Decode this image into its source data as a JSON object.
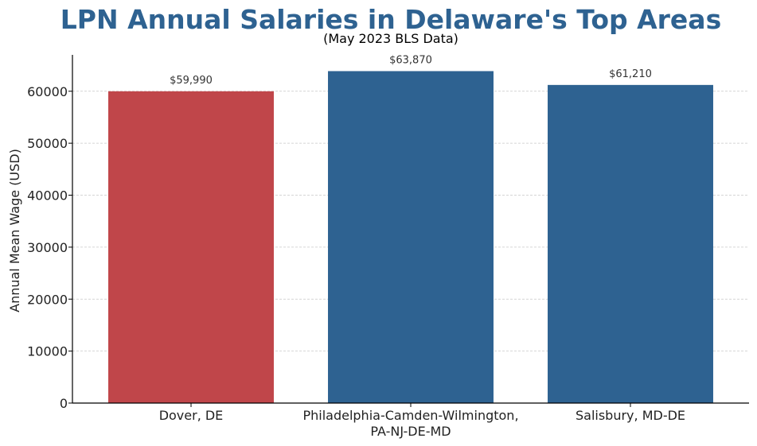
{
  "chart_data": {
    "type": "bar",
    "title": "LPN Annual Salaries in Delaware's Top Areas",
    "subtitle": "(May 2023 BLS Data)",
    "xlabel": "",
    "ylabel": "Annual Mean Wage (USD)",
    "ylim": [
      0,
      67000
    ],
    "yticks": [
      0,
      10000,
      20000,
      30000,
      40000,
      50000,
      60000
    ],
    "grid": true,
    "categories": [
      [
        "Dover, DE"
      ],
      [
        "Philadelphia-Camden-Wilmington,",
        "PA-NJ-DE-MD"
      ],
      [
        "Salisbury, MD-DE"
      ]
    ],
    "values": [
      59990,
      63870,
      61210
    ],
    "data_labels": [
      "$59,990",
      "$63,870",
      "$61,210"
    ],
    "bar_colors": [
      "#c0464a",
      "#2e6291",
      "#2e6291"
    ],
    "title_color": "#2e6291"
  }
}
